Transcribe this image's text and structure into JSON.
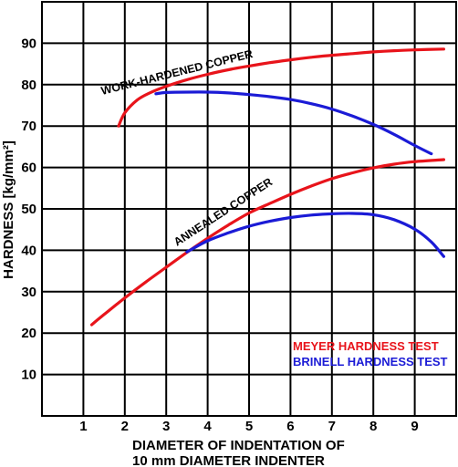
{
  "chart_data": {
    "type": "line",
    "xlabel_line1": "DIAMETER OF INDENTATION OF",
    "xlabel_line2": "10 mm DIAMETER INDENTER",
    "ylabel": "HARDNESS [kg/mm²]",
    "xlim": [
      0,
      10
    ],
    "ylim": [
      0,
      100
    ],
    "x_ticks": [
      "1",
      "2",
      "3",
      "4",
      "5",
      "6",
      "7",
      "8",
      "9"
    ],
    "y_ticks": [
      "10",
      "20",
      "30",
      "40",
      "50",
      "60",
      "70",
      "80",
      "90"
    ],
    "grid": true,
    "annotations": {
      "work_hardened": "WORK-HARDENED COPPER",
      "annealed": "ANNEALED COPPER"
    },
    "legend": {
      "placement": "bottom-right",
      "meyer": "MEYER HARDNESS TEST",
      "brinell": "BRINELL HARDNESS TEST"
    },
    "series": [
      {
        "name": "MEYER HARDNESS TEST",
        "material": "WORK-HARDENED COPPER",
        "color": "#e8141b",
        "x": [
          1.85,
          2.0,
          2.3,
          2.6,
          3.0,
          3.5,
          4.0,
          4.5,
          5.0,
          5.5,
          6.0,
          6.5,
          7.0,
          7.5,
          8.0,
          8.5,
          9.0,
          9.7
        ],
        "y": [
          70.0,
          73.2,
          76.3,
          78.0,
          79.6,
          81.2,
          82.5,
          83.6,
          84.5,
          85.3,
          86.0,
          86.6,
          87.1,
          87.5,
          87.9,
          88.2,
          88.4,
          88.6
        ]
      },
      {
        "name": "BRINELL HARDNESS TEST",
        "material": "WORK-HARDENED COPPER",
        "color": "#1b1bd6",
        "x": [
          2.75,
          3.0,
          3.5,
          4.0,
          4.5,
          5.0,
          5.5,
          6.0,
          6.5,
          7.0,
          7.5,
          8.0,
          8.5,
          9.0,
          9.4
        ],
        "y": [
          77.8,
          78.1,
          78.2,
          78.2,
          78.0,
          77.6,
          77.1,
          76.4,
          75.4,
          74.1,
          72.4,
          70.4,
          68.0,
          65.3,
          63.3
        ]
      },
      {
        "name": "MEYER HARDNESS TEST",
        "material": "ANNEALED COPPER",
        "color": "#e8141b",
        "x": [
          1.2,
          1.5,
          2.0,
          2.5,
          3.0,
          3.5,
          4.0,
          4.5,
          5.0,
          5.5,
          6.0,
          6.5,
          7.0,
          7.5,
          8.0,
          8.5,
          9.0,
          9.7
        ],
        "y": [
          22.0,
          24.5,
          28.5,
          32.3,
          35.9,
          39.5,
          42.9,
          46.1,
          49.0,
          51.3,
          53.5,
          55.5,
          57.3,
          58.7,
          59.9,
          60.8,
          61.4,
          61.9
        ]
      },
      {
        "name": "BRINELL HARDNESS TEST",
        "material": "ANNEALED COPPER",
        "color": "#1b1bd6",
        "x": [
          3.5,
          4.0,
          4.5,
          5.0,
          5.5,
          6.0,
          6.5,
          7.0,
          7.5,
          8.0,
          8.5,
          9.0,
          9.4,
          9.7
        ],
        "y": [
          39.6,
          42.3,
          44.2,
          45.8,
          47.0,
          47.9,
          48.5,
          48.8,
          48.9,
          48.6,
          47.4,
          45.1,
          42.0,
          38.5
        ]
      }
    ]
  }
}
